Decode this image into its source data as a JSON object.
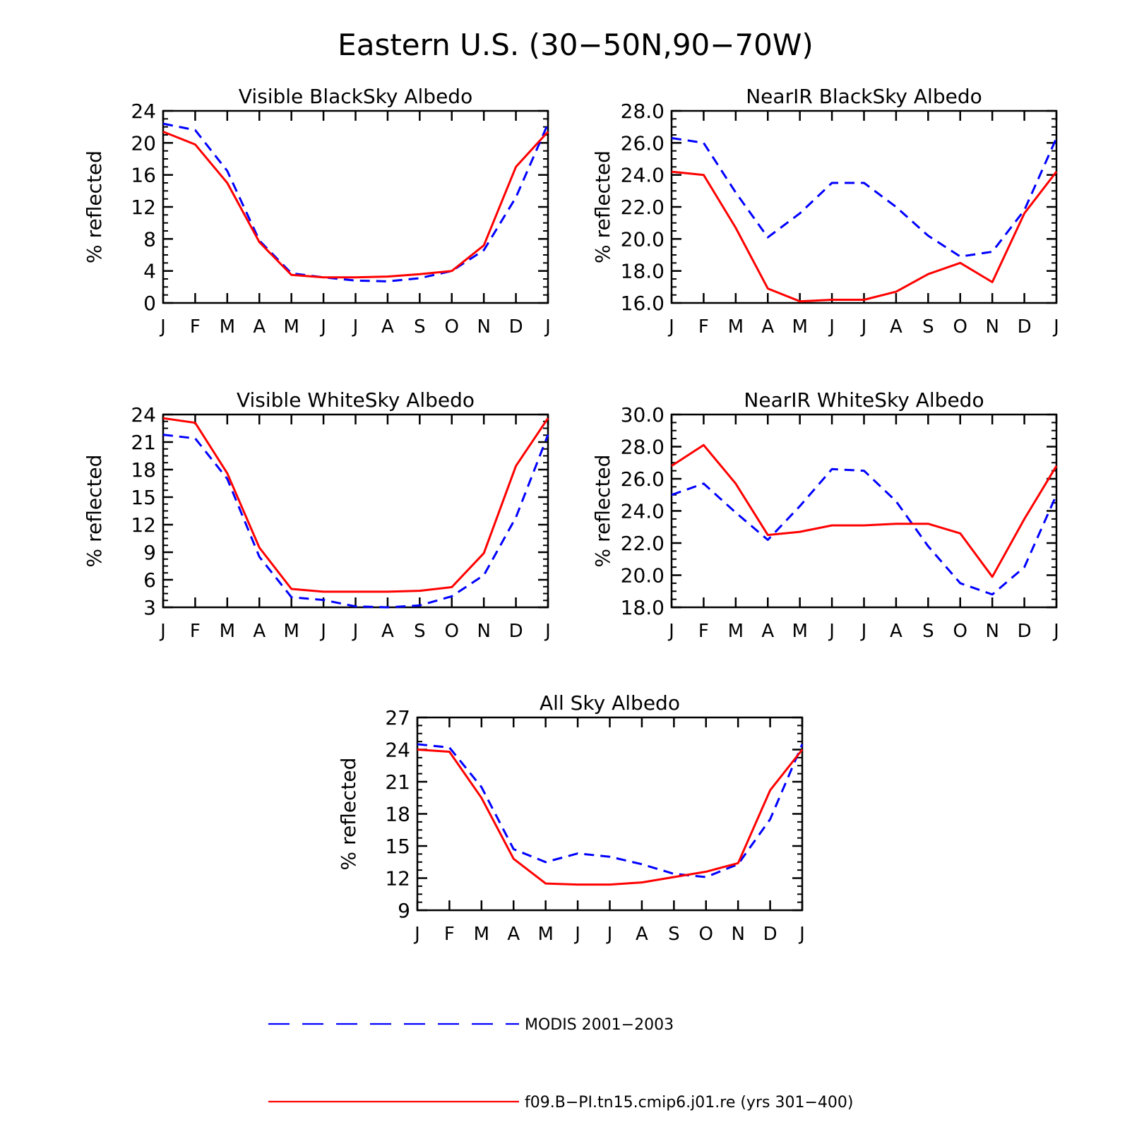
{
  "figure": {
    "title": "Eastern U.S. (30−50N,90−70W)",
    "legend": [
      {
        "label": "MODIS 2001−2003",
        "color": "#0000ff",
        "dash": true
      },
      {
        "label": "f09.B−PI.tn15.cmip6.j01.re (yrs 301−400)",
        "color": "#ff0000",
        "dash": false
      }
    ]
  },
  "chart_data": [
    {
      "type": "line",
      "title": "Visible BlackSky Albedo",
      "ylabel": "% reflected",
      "x": [
        "J",
        "F",
        "M",
        "A",
        "M",
        "J",
        "J",
        "A",
        "S",
        "O",
        "N",
        "D",
        "J"
      ],
      "ylim": [
        0,
        24
      ],
      "yticks": [
        "0",
        "4",
        "8",
        "12",
        "16",
        "20",
        "24"
      ],
      "series": [
        {
          "color": "#0000ff",
          "dash": true,
          "values": [
            22.4,
            21.6,
            16.5,
            7.8,
            3.7,
            3.2,
            2.8,
            2.7,
            3.1,
            4.0,
            6.6,
            13.2,
            22.4
          ]
        },
        {
          "color": "#ff0000",
          "dash": false,
          "values": [
            21.4,
            19.8,
            15.0,
            7.6,
            3.5,
            3.2,
            3.2,
            3.3,
            3.6,
            4.0,
            7.2,
            17.0,
            21.4
          ]
        }
      ]
    },
    {
      "type": "line",
      "title": "NearIR BlackSky Albedo",
      "ylabel": "% reflected",
      "x": [
        "J",
        "F",
        "M",
        "A",
        "M",
        "J",
        "J",
        "A",
        "S",
        "O",
        "N",
        "D",
        "J"
      ],
      "ylim": [
        16,
        28
      ],
      "yticks": [
        "16.0",
        "18.0",
        "20.0",
        "22.0",
        "24.0",
        "26.0",
        "28.0"
      ],
      "series": [
        {
          "color": "#0000ff",
          "dash": true,
          "values": [
            26.3,
            26.0,
            22.9,
            20.1,
            21.6,
            23.5,
            23.5,
            22.0,
            20.2,
            18.9,
            19.2,
            21.8,
            26.3
          ]
        },
        {
          "color": "#ff0000",
          "dash": false,
          "values": [
            24.2,
            24.0,
            20.7,
            16.9,
            16.1,
            16.2,
            16.2,
            16.7,
            17.8,
            18.5,
            17.3,
            21.6,
            24.2
          ]
        }
      ]
    },
    {
      "type": "line",
      "title": "Visible WhiteSky Albedo",
      "ylabel": "% reflected",
      "x": [
        "J",
        "F",
        "M",
        "A",
        "M",
        "J",
        "J",
        "A",
        "S",
        "O",
        "N",
        "D",
        "J"
      ],
      "ylim": [
        3,
        24
      ],
      "yticks": [
        "3",
        "6",
        "9",
        "12",
        "15",
        "18",
        "21",
        "24"
      ],
      "series": [
        {
          "color": "#0000ff",
          "dash": true,
          "values": [
            21.8,
            21.4,
            17.0,
            8.5,
            4.1,
            3.8,
            3.1,
            3.0,
            3.2,
            4.2,
            6.5,
            12.8,
            21.8
          ]
        },
        {
          "color": "#ff0000",
          "dash": false,
          "values": [
            23.6,
            23.1,
            17.6,
            9.5,
            5.0,
            4.7,
            4.7,
            4.7,
            4.8,
            5.2,
            8.9,
            18.4,
            23.6
          ]
        }
      ]
    },
    {
      "type": "line",
      "title": "NearIR WhiteSky Albedo",
      "ylabel": "% reflected",
      "x": [
        "J",
        "F",
        "M",
        "A",
        "M",
        "J",
        "J",
        "A",
        "S",
        "O",
        "N",
        "D",
        "J"
      ],
      "ylim": [
        18,
        30
      ],
      "yticks": [
        "18.0",
        "20.0",
        "22.0",
        "24.0",
        "26.0",
        "28.0",
        "30.0"
      ],
      "series": [
        {
          "color": "#0000ff",
          "dash": true,
          "values": [
            25.0,
            25.7,
            23.9,
            22.2,
            24.3,
            26.6,
            26.5,
            24.6,
            21.8,
            19.5,
            18.8,
            20.5,
            25.0
          ]
        },
        {
          "color": "#ff0000",
          "dash": false,
          "values": [
            26.8,
            28.1,
            25.7,
            22.5,
            22.7,
            23.1,
            23.1,
            23.2,
            23.2,
            22.6,
            19.9,
            23.5,
            26.8
          ]
        }
      ]
    },
    {
      "type": "line",
      "title": "All Sky Albedo",
      "ylabel": "% reflected",
      "x": [
        "J",
        "F",
        "M",
        "A",
        "M",
        "J",
        "J",
        "A",
        "S",
        "O",
        "N",
        "D",
        "J"
      ],
      "ylim": [
        9,
        27
      ],
      "yticks": [
        "9",
        "12",
        "15",
        "18",
        "21",
        "24",
        "27"
      ],
      "series": [
        {
          "color": "#0000ff",
          "dash": true,
          "values": [
            24.5,
            24.2,
            20.5,
            14.7,
            13.5,
            14.3,
            14.0,
            13.3,
            12.4,
            12.1,
            13.3,
            17.5,
            24.5
          ]
        },
        {
          "color": "#ff0000",
          "dash": false,
          "values": [
            24.0,
            23.8,
            19.5,
            13.8,
            11.5,
            11.4,
            11.4,
            11.6,
            12.1,
            12.6,
            13.4,
            20.2,
            24.0
          ]
        }
      ]
    }
  ]
}
